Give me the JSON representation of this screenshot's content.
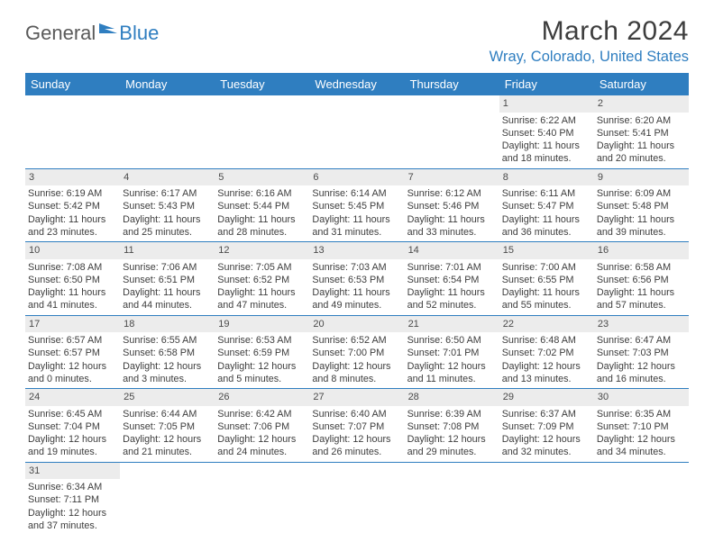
{
  "brand": {
    "part1": "General",
    "part2": "Blue"
  },
  "title": "March 2024",
  "location": "Wray, Colorado, United States",
  "colors": {
    "accent": "#2f7ec0",
    "daynum_bg": "#ececec",
    "text": "#3d3d3d",
    "white": "#ffffff"
  },
  "weekdays": [
    "Sunday",
    "Monday",
    "Tuesday",
    "Wednesday",
    "Thursday",
    "Friday",
    "Saturday"
  ],
  "weeks": [
    [
      null,
      null,
      null,
      null,
      null,
      {
        "n": "1",
        "sr": "Sunrise: 6:22 AM",
        "ss": "Sunset: 5:40 PM",
        "d1": "Daylight: 11 hours",
        "d2": "and 18 minutes."
      },
      {
        "n": "2",
        "sr": "Sunrise: 6:20 AM",
        "ss": "Sunset: 5:41 PM",
        "d1": "Daylight: 11 hours",
        "d2": "and 20 minutes."
      }
    ],
    [
      {
        "n": "3",
        "sr": "Sunrise: 6:19 AM",
        "ss": "Sunset: 5:42 PM",
        "d1": "Daylight: 11 hours",
        "d2": "and 23 minutes."
      },
      {
        "n": "4",
        "sr": "Sunrise: 6:17 AM",
        "ss": "Sunset: 5:43 PM",
        "d1": "Daylight: 11 hours",
        "d2": "and 25 minutes."
      },
      {
        "n": "5",
        "sr": "Sunrise: 6:16 AM",
        "ss": "Sunset: 5:44 PM",
        "d1": "Daylight: 11 hours",
        "d2": "and 28 minutes."
      },
      {
        "n": "6",
        "sr": "Sunrise: 6:14 AM",
        "ss": "Sunset: 5:45 PM",
        "d1": "Daylight: 11 hours",
        "d2": "and 31 minutes."
      },
      {
        "n": "7",
        "sr": "Sunrise: 6:12 AM",
        "ss": "Sunset: 5:46 PM",
        "d1": "Daylight: 11 hours",
        "d2": "and 33 minutes."
      },
      {
        "n": "8",
        "sr": "Sunrise: 6:11 AM",
        "ss": "Sunset: 5:47 PM",
        "d1": "Daylight: 11 hours",
        "d2": "and 36 minutes."
      },
      {
        "n": "9",
        "sr": "Sunrise: 6:09 AM",
        "ss": "Sunset: 5:48 PM",
        "d1": "Daylight: 11 hours",
        "d2": "and 39 minutes."
      }
    ],
    [
      {
        "n": "10",
        "sr": "Sunrise: 7:08 AM",
        "ss": "Sunset: 6:50 PM",
        "d1": "Daylight: 11 hours",
        "d2": "and 41 minutes."
      },
      {
        "n": "11",
        "sr": "Sunrise: 7:06 AM",
        "ss": "Sunset: 6:51 PM",
        "d1": "Daylight: 11 hours",
        "d2": "and 44 minutes."
      },
      {
        "n": "12",
        "sr": "Sunrise: 7:05 AM",
        "ss": "Sunset: 6:52 PM",
        "d1": "Daylight: 11 hours",
        "d2": "and 47 minutes."
      },
      {
        "n": "13",
        "sr": "Sunrise: 7:03 AM",
        "ss": "Sunset: 6:53 PM",
        "d1": "Daylight: 11 hours",
        "d2": "and 49 minutes."
      },
      {
        "n": "14",
        "sr": "Sunrise: 7:01 AM",
        "ss": "Sunset: 6:54 PM",
        "d1": "Daylight: 11 hours",
        "d2": "and 52 minutes."
      },
      {
        "n": "15",
        "sr": "Sunrise: 7:00 AM",
        "ss": "Sunset: 6:55 PM",
        "d1": "Daylight: 11 hours",
        "d2": "and 55 minutes."
      },
      {
        "n": "16",
        "sr": "Sunrise: 6:58 AM",
        "ss": "Sunset: 6:56 PM",
        "d1": "Daylight: 11 hours",
        "d2": "and 57 minutes."
      }
    ],
    [
      {
        "n": "17",
        "sr": "Sunrise: 6:57 AM",
        "ss": "Sunset: 6:57 PM",
        "d1": "Daylight: 12 hours",
        "d2": "and 0 minutes."
      },
      {
        "n": "18",
        "sr": "Sunrise: 6:55 AM",
        "ss": "Sunset: 6:58 PM",
        "d1": "Daylight: 12 hours",
        "d2": "and 3 minutes."
      },
      {
        "n": "19",
        "sr": "Sunrise: 6:53 AM",
        "ss": "Sunset: 6:59 PM",
        "d1": "Daylight: 12 hours",
        "d2": "and 5 minutes."
      },
      {
        "n": "20",
        "sr": "Sunrise: 6:52 AM",
        "ss": "Sunset: 7:00 PM",
        "d1": "Daylight: 12 hours",
        "d2": "and 8 minutes."
      },
      {
        "n": "21",
        "sr": "Sunrise: 6:50 AM",
        "ss": "Sunset: 7:01 PM",
        "d1": "Daylight: 12 hours",
        "d2": "and 11 minutes."
      },
      {
        "n": "22",
        "sr": "Sunrise: 6:48 AM",
        "ss": "Sunset: 7:02 PM",
        "d1": "Daylight: 12 hours",
        "d2": "and 13 minutes."
      },
      {
        "n": "23",
        "sr": "Sunrise: 6:47 AM",
        "ss": "Sunset: 7:03 PM",
        "d1": "Daylight: 12 hours",
        "d2": "and 16 minutes."
      }
    ],
    [
      {
        "n": "24",
        "sr": "Sunrise: 6:45 AM",
        "ss": "Sunset: 7:04 PM",
        "d1": "Daylight: 12 hours",
        "d2": "and 19 minutes."
      },
      {
        "n": "25",
        "sr": "Sunrise: 6:44 AM",
        "ss": "Sunset: 7:05 PM",
        "d1": "Daylight: 12 hours",
        "d2": "and 21 minutes."
      },
      {
        "n": "26",
        "sr": "Sunrise: 6:42 AM",
        "ss": "Sunset: 7:06 PM",
        "d1": "Daylight: 12 hours",
        "d2": "and 24 minutes."
      },
      {
        "n": "27",
        "sr": "Sunrise: 6:40 AM",
        "ss": "Sunset: 7:07 PM",
        "d1": "Daylight: 12 hours",
        "d2": "and 26 minutes."
      },
      {
        "n": "28",
        "sr": "Sunrise: 6:39 AM",
        "ss": "Sunset: 7:08 PM",
        "d1": "Daylight: 12 hours",
        "d2": "and 29 minutes."
      },
      {
        "n": "29",
        "sr": "Sunrise: 6:37 AM",
        "ss": "Sunset: 7:09 PM",
        "d1": "Daylight: 12 hours",
        "d2": "and 32 minutes."
      },
      {
        "n": "30",
        "sr": "Sunrise: 6:35 AM",
        "ss": "Sunset: 7:10 PM",
        "d1": "Daylight: 12 hours",
        "d2": "and 34 minutes."
      }
    ],
    [
      {
        "n": "31",
        "sr": "Sunrise: 6:34 AM",
        "ss": "Sunset: 7:11 PM",
        "d1": "Daylight: 12 hours",
        "d2": "and 37 minutes."
      },
      null,
      null,
      null,
      null,
      null,
      null
    ]
  ]
}
